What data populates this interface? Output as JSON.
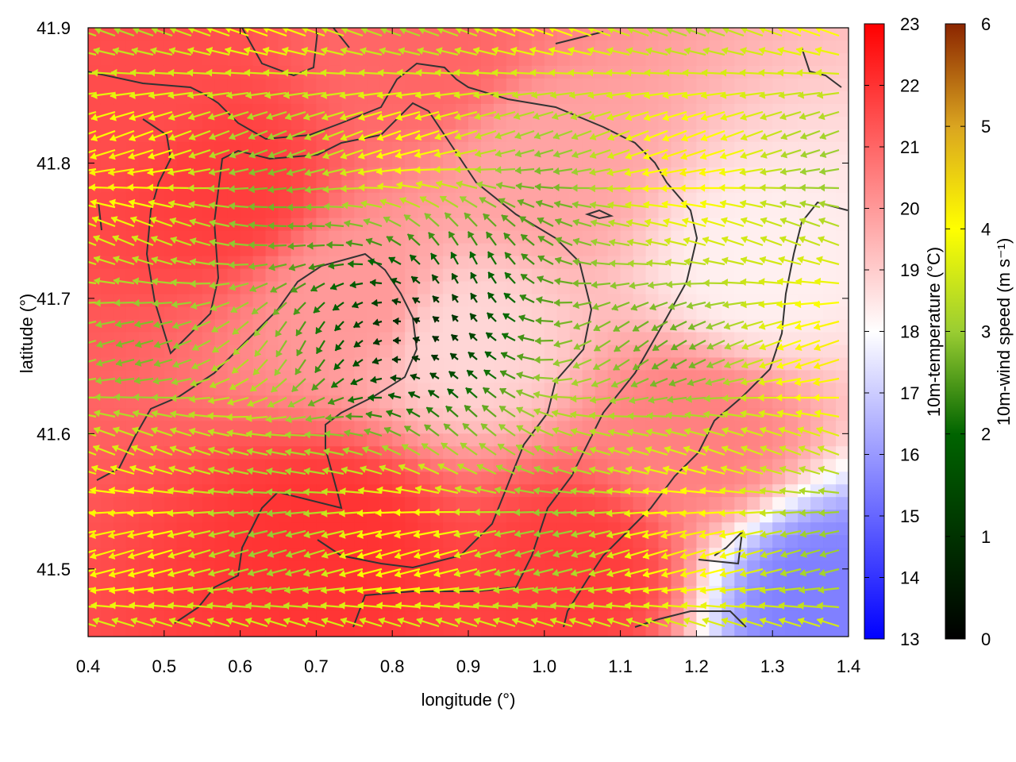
{
  "chart_data": {
    "type": "heatmap",
    "title": "",
    "xlabel": "longitude (°)",
    "ylabel": "latitude (°)",
    "xlim": [
      0.4,
      1.4
    ],
    "ylim": [
      41.45,
      41.9
    ],
    "x_ticks": [
      "0.4",
      "0.5",
      "0.6",
      "0.7",
      "0.8",
      "0.9",
      "1.0",
      "1.1",
      "1.2",
      "1.3",
      "1.4"
    ],
    "y_ticks": [
      "41.5",
      "41.6",
      "41.7",
      "41.8",
      "41.9"
    ],
    "grid": false,
    "temperature_colorbar": {
      "label": "10m-temperature (°C)",
      "range": [
        13,
        23
      ],
      "ticks": [
        "13",
        "14",
        "15",
        "16",
        "17",
        "18",
        "19",
        "20",
        "21",
        "22",
        "23"
      ],
      "colors": [
        "#0000ff",
        "#ffffff",
        "#ff0000"
      ]
    },
    "wind_colorbar": {
      "label": "10m-wind speed (m s⁻¹)",
      "range": [
        0,
        6
      ],
      "ticks": [
        "0",
        "1",
        "2",
        "3",
        "4",
        "5",
        "6"
      ],
      "colors": [
        "#000000",
        "#006400",
        "#9acd32",
        "#ffff00",
        "#daa520",
        "#8b2500"
      ]
    },
    "temperature_field_sample": [
      {
        "lon": 0.45,
        "lat": 41.85,
        "t": 21.5
      },
      {
        "lon": 0.58,
        "lat": 41.78,
        "t": 21.8
      },
      {
        "lon": 0.75,
        "lat": 41.7,
        "t": 20.0
      },
      {
        "lon": 0.9,
        "lat": 41.67,
        "t": 18.8
      },
      {
        "lon": 0.72,
        "lat": 41.52,
        "t": 22.0
      },
      {
        "lon": 1.04,
        "lat": 41.5,
        "t": 21.8
      },
      {
        "lon": 1.2,
        "lat": 41.6,
        "t": 20.5
      },
      {
        "lon": 1.28,
        "lat": 41.72,
        "t": 18.3
      },
      {
        "lon": 1.37,
        "lat": 41.48,
        "t": 15.5
      },
      {
        "lon": 1.0,
        "lat": 41.8,
        "t": 19.8
      },
      {
        "lon": 0.85,
        "lat": 41.88,
        "t": 21.0
      }
    ]
  }
}
